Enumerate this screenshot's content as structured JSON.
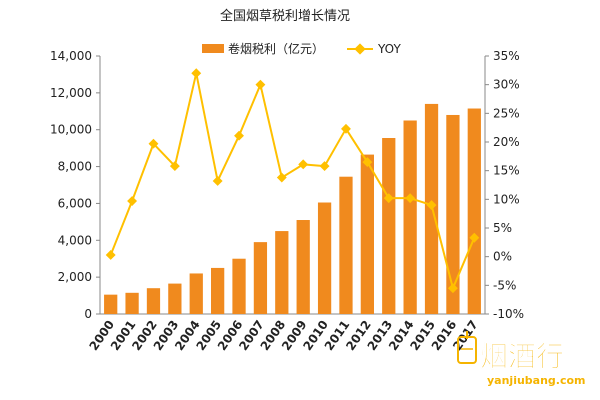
{
  "chart_data": {
    "type": "bar+line",
    "title": "全国烟草税利增长情况",
    "categories": [
      "2000",
      "2001",
      "2002",
      "2003",
      "2004",
      "2005",
      "2006",
      "2007",
      "2008",
      "2009",
      "2010",
      "2011",
      "2012",
      "2013",
      "2014",
      "2015",
      "2016",
      "2017"
    ],
    "series": [
      {
        "name": "卷烟税利（亿元）",
        "type": "bar",
        "axis": "left",
        "color": "#F08A1E",
        "values": [
          1050,
          1150,
          1400,
          1650,
          2200,
          2500,
          3000,
          3900,
          4500,
          5100,
          6050,
          7450,
          8650,
          9550,
          10500,
          11400,
          10800,
          11150
        ]
      },
      {
        "name": "YOY",
        "type": "line",
        "axis": "right",
        "color": "#FFC000",
        "values": [
          0.3,
          9.7,
          19.7,
          15.8,
          32.0,
          13.2,
          21.1,
          30.0,
          13.8,
          16.1,
          15.8,
          22.3,
          16.5,
          10.2,
          10.2,
          9.0,
          -5.5,
          3.3
        ]
      }
    ],
    "y_left": {
      "min": 0,
      "max": 14000,
      "step": 2000,
      "ticks": [
        "0",
        "2,000",
        "4,000",
        "6,000",
        "8,000",
        "10,000",
        "12,000",
        "14,000"
      ]
    },
    "y_right": {
      "min": -10,
      "max": 35,
      "step": 5,
      "ticks": [
        "-10%",
        "-5%",
        "0%",
        "5%",
        "10%",
        "15%",
        "20%",
        "25%",
        "30%",
        "35%"
      ]
    },
    "legend": {
      "position": "top-center",
      "labels": [
        "卷烟税利（亿元）",
        "YOY"
      ]
    },
    "grid": false
  },
  "watermark": {
    "brand": "烟酒行",
    "url": "yanjiubang.com"
  }
}
